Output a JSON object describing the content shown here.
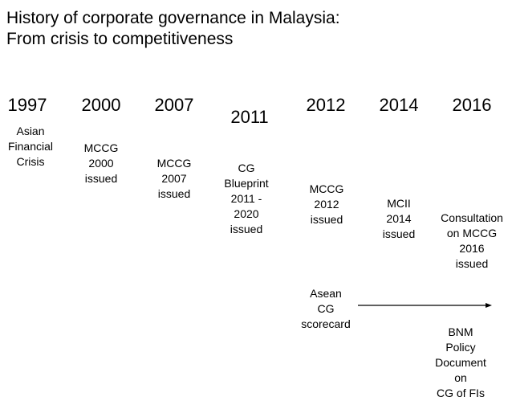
{
  "title": {
    "line1": "History of corporate governance in Malaysia:",
    "line2": "From crisis to competitiveness"
  },
  "timeline": [
    {
      "year": "1997",
      "event": "Asian\nFinancial\nCrisis"
    },
    {
      "year": "2000",
      "event": "MCCG\n2000\nissued"
    },
    {
      "year": "2007",
      "event": "MCCG\n2007\nissued"
    },
    {
      "year": "2011",
      "event": "CG\nBlueprint\n2011 -\n2020\nissued"
    },
    {
      "year": "2012",
      "event": "MCCG\n2012\nissued"
    },
    {
      "year": "2014",
      "event": "MCII\n2014\nissued"
    },
    {
      "year": "2016",
      "event": "Consultation\non MCCG\n2016\nissued"
    }
  ],
  "extra_events": {
    "asean": "Asean\nCG\nscorecard",
    "bnm": "BNM Policy\nDocument on\nCG of FIs"
  },
  "arrow_direction": "right"
}
